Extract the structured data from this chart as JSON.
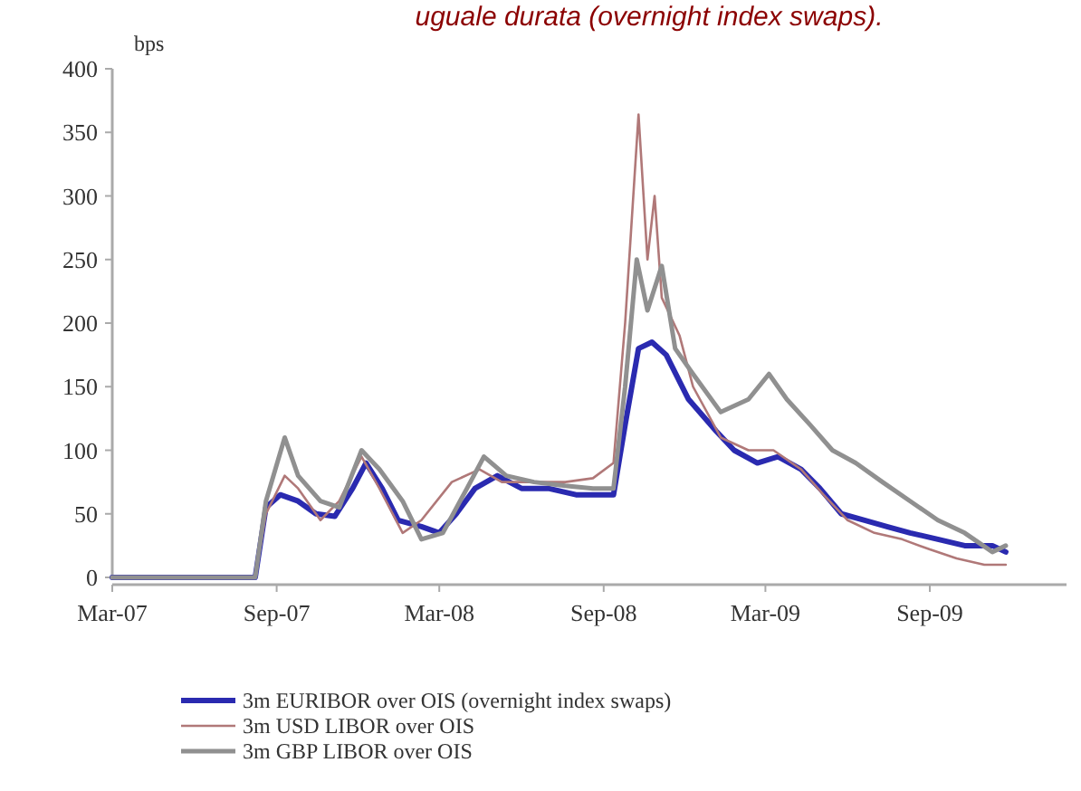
{
  "chart_data": {
    "type": "line",
    "title": "uguale durata (overnight index swaps).",
    "ylabel": "bps",
    "xlim": [
      "2007-03-01",
      "2010-02-01"
    ],
    "xticks": [
      {
        "value": "2007-03-01",
        "label": "Mar-07"
      },
      {
        "value": "2007-09-01",
        "label": "Sep-07"
      },
      {
        "value": "2008-03-01",
        "label": "Mar-08"
      },
      {
        "value": "2008-09-01",
        "label": "Sep-08"
      },
      {
        "value": "2009-03-01",
        "label": "Mar-09"
      },
      {
        "value": "2009-09-01",
        "label": "Sep-09"
      }
    ],
    "ylim": [
      0,
      400
    ],
    "yticks": [
      0,
      50,
      100,
      150,
      200,
      250,
      300,
      350,
      400
    ],
    "grid": false,
    "legend": "bottom",
    "marker": "none",
    "line_style": "solid",
    "series": [
      {
        "name": "3m EURIBOR over OIS (overnight index swaps)",
        "color": "#2a2ab0",
        "x": [
          "2007-03-01",
          "2007-08-08",
          "2007-08-20",
          "2007-09-05",
          "2007-09-25",
          "2007-10-15",
          "2007-11-05",
          "2007-11-25",
          "2007-12-10",
          "2007-12-28",
          "2008-01-15",
          "2008-02-10",
          "2008-03-01",
          "2008-03-20",
          "2008-04-10",
          "2008-05-05",
          "2008-06-01",
          "2008-07-01",
          "2008-08-01",
          "2008-09-12",
          "2008-09-25",
          "2008-10-10",
          "2008-10-25",
          "2008-11-10",
          "2008-12-05",
          "2009-01-05",
          "2009-01-25",
          "2009-02-20",
          "2009-03-15",
          "2009-04-10",
          "2009-05-01",
          "2009-05-25",
          "2009-06-20",
          "2009-07-15",
          "2009-08-10",
          "2009-09-10",
          "2009-10-10",
          "2009-11-10",
          "2009-11-25"
        ],
        "values": [
          0,
          0,
          55,
          65,
          60,
          50,
          48,
          70,
          90,
          70,
          45,
          40,
          35,
          50,
          70,
          80,
          70,
          70,
          65,
          65,
          120,
          180,
          185,
          175,
          140,
          115,
          100,
          90,
          95,
          85,
          70,
          50,
          45,
          40,
          35,
          30,
          25,
          25,
          20
        ]
      },
      {
        "name": "3m USD LIBOR over OIS",
        "color": "#b07878",
        "x": [
          "2007-03-01",
          "2007-08-08",
          "2007-08-20",
          "2007-09-10",
          "2007-09-25",
          "2007-10-20",
          "2007-11-10",
          "2007-12-05",
          "2007-12-25",
          "2008-01-20",
          "2008-02-10",
          "2008-03-15",
          "2008-04-15",
          "2008-05-10",
          "2008-06-15",
          "2008-07-20",
          "2008-08-20",
          "2008-09-12",
          "2008-09-25",
          "2008-10-10",
          "2008-10-20",
          "2008-10-28",
          "2008-11-05",
          "2008-11-25",
          "2008-12-10",
          "2009-01-10",
          "2009-02-10",
          "2009-03-10",
          "2009-04-10",
          "2009-05-05",
          "2009-06-01",
          "2009-07-01",
          "2009-08-01",
          "2009-09-01",
          "2009-10-01",
          "2009-11-01",
          "2009-11-25"
        ],
        "values": [
          0,
          0,
          50,
          80,
          70,
          45,
          60,
          95,
          70,
          35,
          45,
          75,
          85,
          75,
          75,
          75,
          78,
          90,
          200,
          364,
          250,
          300,
          220,
          190,
          150,
          110,
          100,
          100,
          85,
          65,
          45,
          35,
          30,
          22,
          15,
          10,
          10
        ]
      },
      {
        "name": "3m GBP LIBOR over OIS",
        "color": "#909090",
        "x": [
          "2007-03-01",
          "2007-08-08",
          "2007-08-20",
          "2007-09-10",
          "2007-09-25",
          "2007-10-20",
          "2007-11-10",
          "2007-12-05",
          "2007-12-25",
          "2008-01-20",
          "2008-02-10",
          "2008-03-05",
          "2008-04-01",
          "2008-04-20",
          "2008-05-15",
          "2008-06-15",
          "2008-07-20",
          "2008-08-20",
          "2008-09-12",
          "2008-09-25",
          "2008-10-08",
          "2008-10-20",
          "2008-11-05",
          "2008-11-20",
          "2008-12-10",
          "2009-01-10",
          "2009-02-10",
          "2009-03-05",
          "2009-03-25",
          "2009-04-20",
          "2009-05-15",
          "2009-06-10",
          "2009-07-10",
          "2009-08-10",
          "2009-09-10",
          "2009-10-10",
          "2009-11-10",
          "2009-11-25"
        ],
        "values": [
          0,
          0,
          60,
          110,
          80,
          60,
          55,
          100,
          85,
          60,
          30,
          35,
          70,
          95,
          80,
          75,
          72,
          70,
          70,
          150,
          250,
          210,
          245,
          180,
          160,
          130,
          140,
          160,
          140,
          120,
          100,
          90,
          75,
          60,
          45,
          35,
          20,
          25
        ]
      }
    ]
  }
}
